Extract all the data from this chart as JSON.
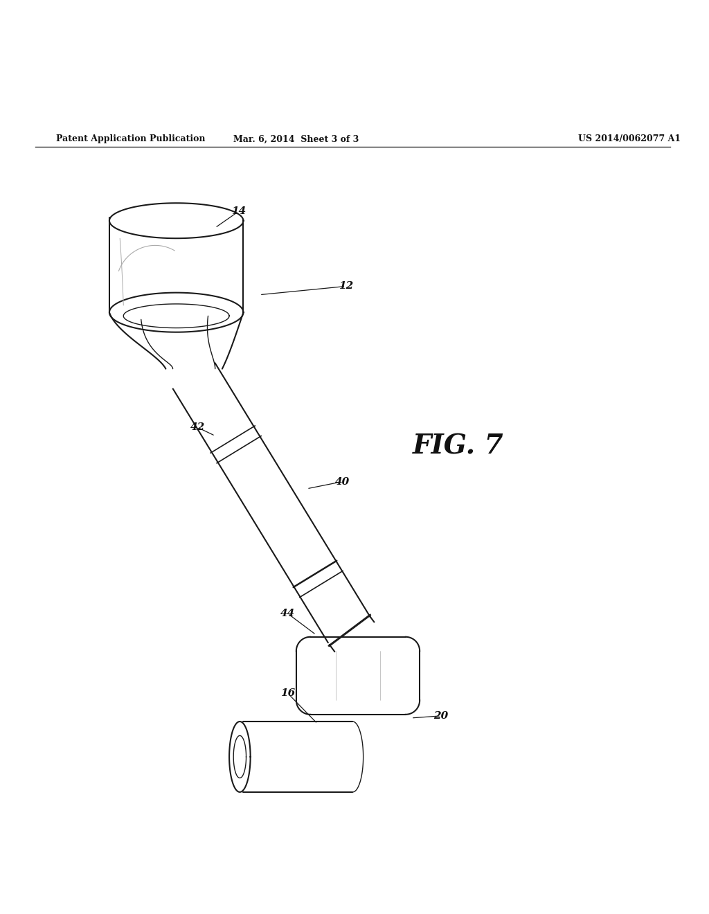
{
  "header_left": "Patent Application Publication",
  "header_mid": "Mar. 6, 2014  Sheet 3 of 3",
  "header_right": "US 2014/0062077 A1",
  "fig_label": "FIG. 7",
  "bg_color": "#ffffff",
  "line_color": "#1a1a1a"
}
